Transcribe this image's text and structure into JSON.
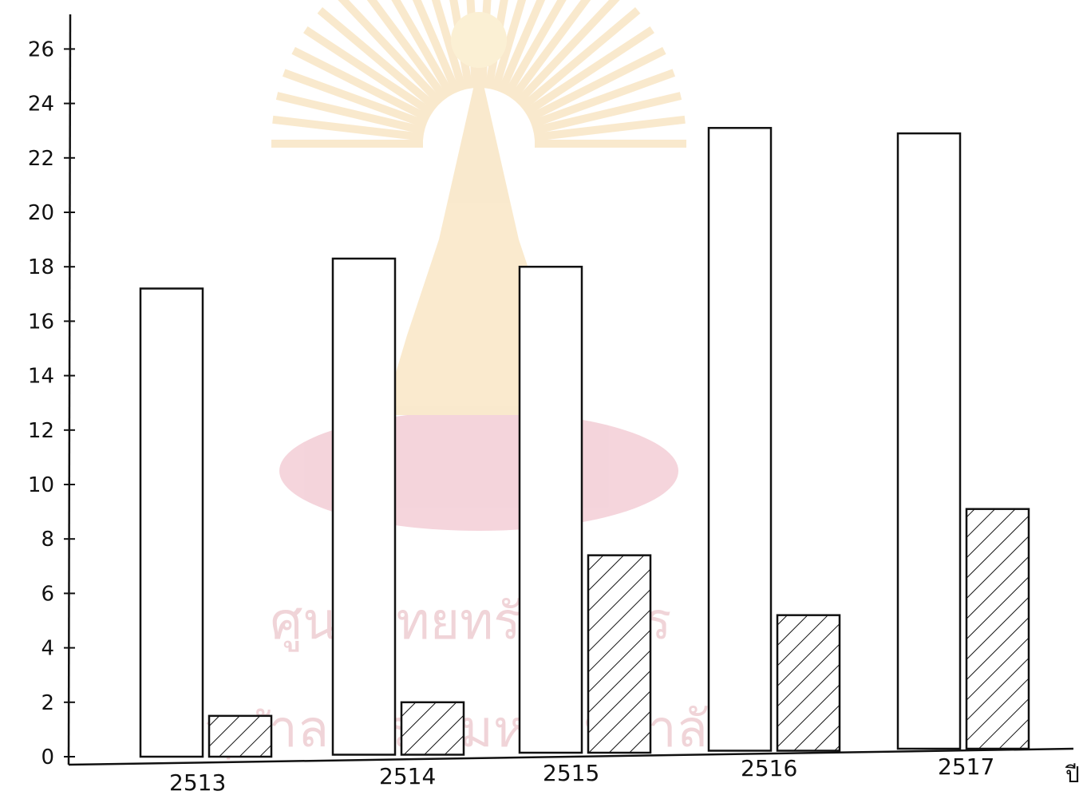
{
  "chart_data": {
    "type": "bar",
    "categories": [
      "2513",
      "2514",
      "2515",
      "2516",
      "2517"
    ],
    "series": [
      {
        "values": [
          17.2,
          18.3,
          18.0,
          23.1,
          22.9
        ],
        "pattern": "plain"
      },
      {
        "values": [
          1.5,
          2.0,
          7.4,
          5.2,
          9.1
        ],
        "pattern": "hatched"
      }
    ],
    "y_ticks": [
      0,
      2,
      4,
      6,
      8,
      10,
      12,
      14,
      16,
      18,
      20,
      22,
      24,
      26
    ],
    "ylim": [
      0,
      27
    ],
    "xlabel": "ปี",
    "ylabel": "",
    "title": "",
    "grid": false,
    "colors": {
      "ink": "#111111",
      "fill": "#ffffff",
      "watermark": "#e8a020",
      "watermark_text": "#c04050"
    }
  },
  "watermark": {
    "line1": "ศูนย์วิทยทรัพยากร",
    "line2": "จุฬาลงกรณ์มหาวิทยาลัย"
  }
}
